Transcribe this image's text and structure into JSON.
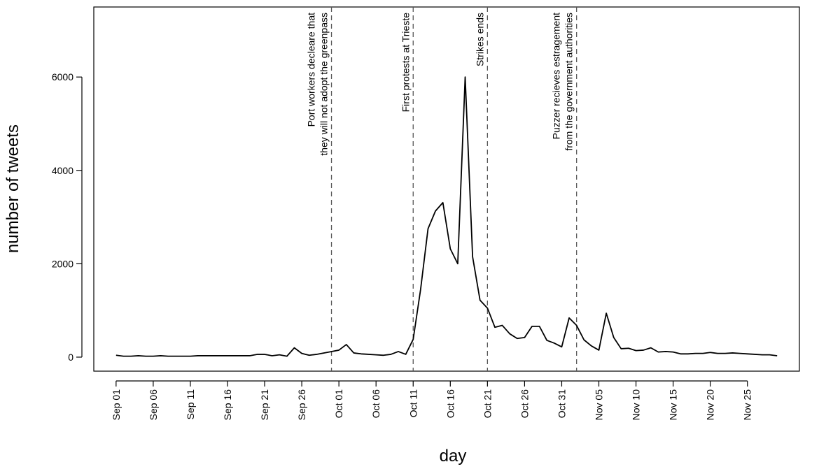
{
  "chart_data": {
    "type": "line",
    "title": "",
    "xlabel": "day",
    "ylabel": "number of tweets",
    "x_start": "2021-09-01",
    "x_end": "2021-11-29",
    "xlim": [
      "2021-08-29",
      "2021-12-02"
    ],
    "ylim": [
      -300,
      7500
    ],
    "grid": false,
    "x_ticks": [
      {
        "date": "2021-09-01",
        "label": "Sep 01"
      },
      {
        "date": "2021-09-06",
        "label": "Sep 06"
      },
      {
        "date": "2021-09-11",
        "label": "Sep 11"
      },
      {
        "date": "2021-09-16",
        "label": "Sep 16"
      },
      {
        "date": "2021-09-21",
        "label": "Sep 21"
      },
      {
        "date": "2021-09-26",
        "label": "Sep 26"
      },
      {
        "date": "2021-10-01",
        "label": "Oct 01"
      },
      {
        "date": "2021-10-06",
        "label": "Oct 06"
      },
      {
        "date": "2021-10-11",
        "label": "Oct 11"
      },
      {
        "date": "2021-10-16",
        "label": "Oct 16"
      },
      {
        "date": "2021-10-21",
        "label": "Oct 21"
      },
      {
        "date": "2021-10-26",
        "label": "Oct 26"
      },
      {
        "date": "2021-10-31",
        "label": "Oct 31"
      },
      {
        "date": "2021-11-05",
        "label": "Nov 05"
      },
      {
        "date": "2021-11-10",
        "label": "Nov 10"
      },
      {
        "date": "2021-11-15",
        "label": "Nov 15"
      },
      {
        "date": "2021-11-20",
        "label": "Nov 20"
      },
      {
        "date": "2021-11-25",
        "label": "Nov 25"
      }
    ],
    "y_ticks": [
      {
        "value": 0,
        "label": "0"
      },
      {
        "value": 2000,
        "label": "2000"
      },
      {
        "value": 4000,
        "label": "4000"
      },
      {
        "value": 6000,
        "label": "6000"
      }
    ],
    "series": [
      {
        "color": "#000000",
        "values": [
          40,
          20,
          20,
          30,
          20,
          20,
          30,
          20,
          20,
          20,
          20,
          30,
          30,
          30,
          30,
          30,
          30,
          30,
          30,
          60,
          60,
          30,
          50,
          20,
          200,
          80,
          40,
          60,
          90,
          120,
          150,
          270,
          90,
          70,
          60,
          50,
          40,
          60,
          120,
          60,
          380,
          1450,
          2750,
          3130,
          3310,
          2320,
          2000,
          6000,
          2150,
          1220,
          1050,
          640,
          680,
          500,
          400,
          420,
          660,
          660,
          360,
          300,
          220,
          840,
          680,
          370,
          240,
          150,
          940,
          420,
          180,
          190,
          140,
          150,
          200,
          110,
          120,
          110,
          70,
          70,
          80,
          80,
          100,
          80,
          80,
          90,
          80,
          70,
          60,
          50,
          50,
          30
        ]
      }
    ],
    "annotations": [
      {
        "date": "2021-09-30",
        "lines": [
          "Port workers decleare that",
          "they will not adopt the greenpass"
        ]
      },
      {
        "date": "2021-10-11",
        "lines": [
          "First protests at Trieste"
        ]
      },
      {
        "date": "2021-10-21",
        "lines": [
          "Strikes ends"
        ]
      },
      {
        "date": "2021-11-02",
        "lines": [
          "Puzzer recieves estragement",
          "from the government authorities"
        ]
      }
    ]
  }
}
